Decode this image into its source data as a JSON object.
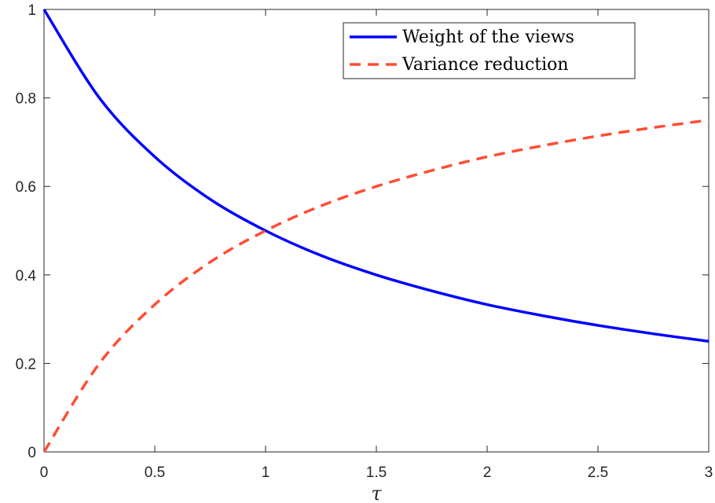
{
  "chart_data": {
    "type": "line",
    "title": "",
    "xlabel": "τ",
    "ylabel": "",
    "xlim": [
      0,
      3
    ],
    "ylim": [
      0,
      1
    ],
    "grid": false,
    "legend_position": "top-right",
    "x_ticks": [
      "0",
      "0.5",
      "1",
      "1.5",
      "2",
      "2.5",
      "3"
    ],
    "y_ticks": [
      "0",
      "0.2",
      "0.4",
      "0.6",
      "0.8",
      "1"
    ],
    "x": [
      0,
      0.25,
      0.5,
      0.75,
      1,
      1.25,
      1.5,
      1.75,
      2,
      2.25,
      2.5,
      2.75,
      3
    ],
    "series": [
      {
        "name": "Weight of the views",
        "color": "#0000ff",
        "style": "solid",
        "values": [
          1.0,
          0.8,
          0.667,
          0.571,
          0.5,
          0.444,
          0.4,
          0.364,
          0.333,
          0.308,
          0.286,
          0.267,
          0.25
        ]
      },
      {
        "name": "Variance reduction",
        "color": "#ff4d33",
        "style": "dashed",
        "values": [
          0.0,
          0.2,
          0.333,
          0.429,
          0.5,
          0.556,
          0.6,
          0.636,
          0.667,
          0.692,
          0.714,
          0.733,
          0.75
        ]
      }
    ]
  }
}
